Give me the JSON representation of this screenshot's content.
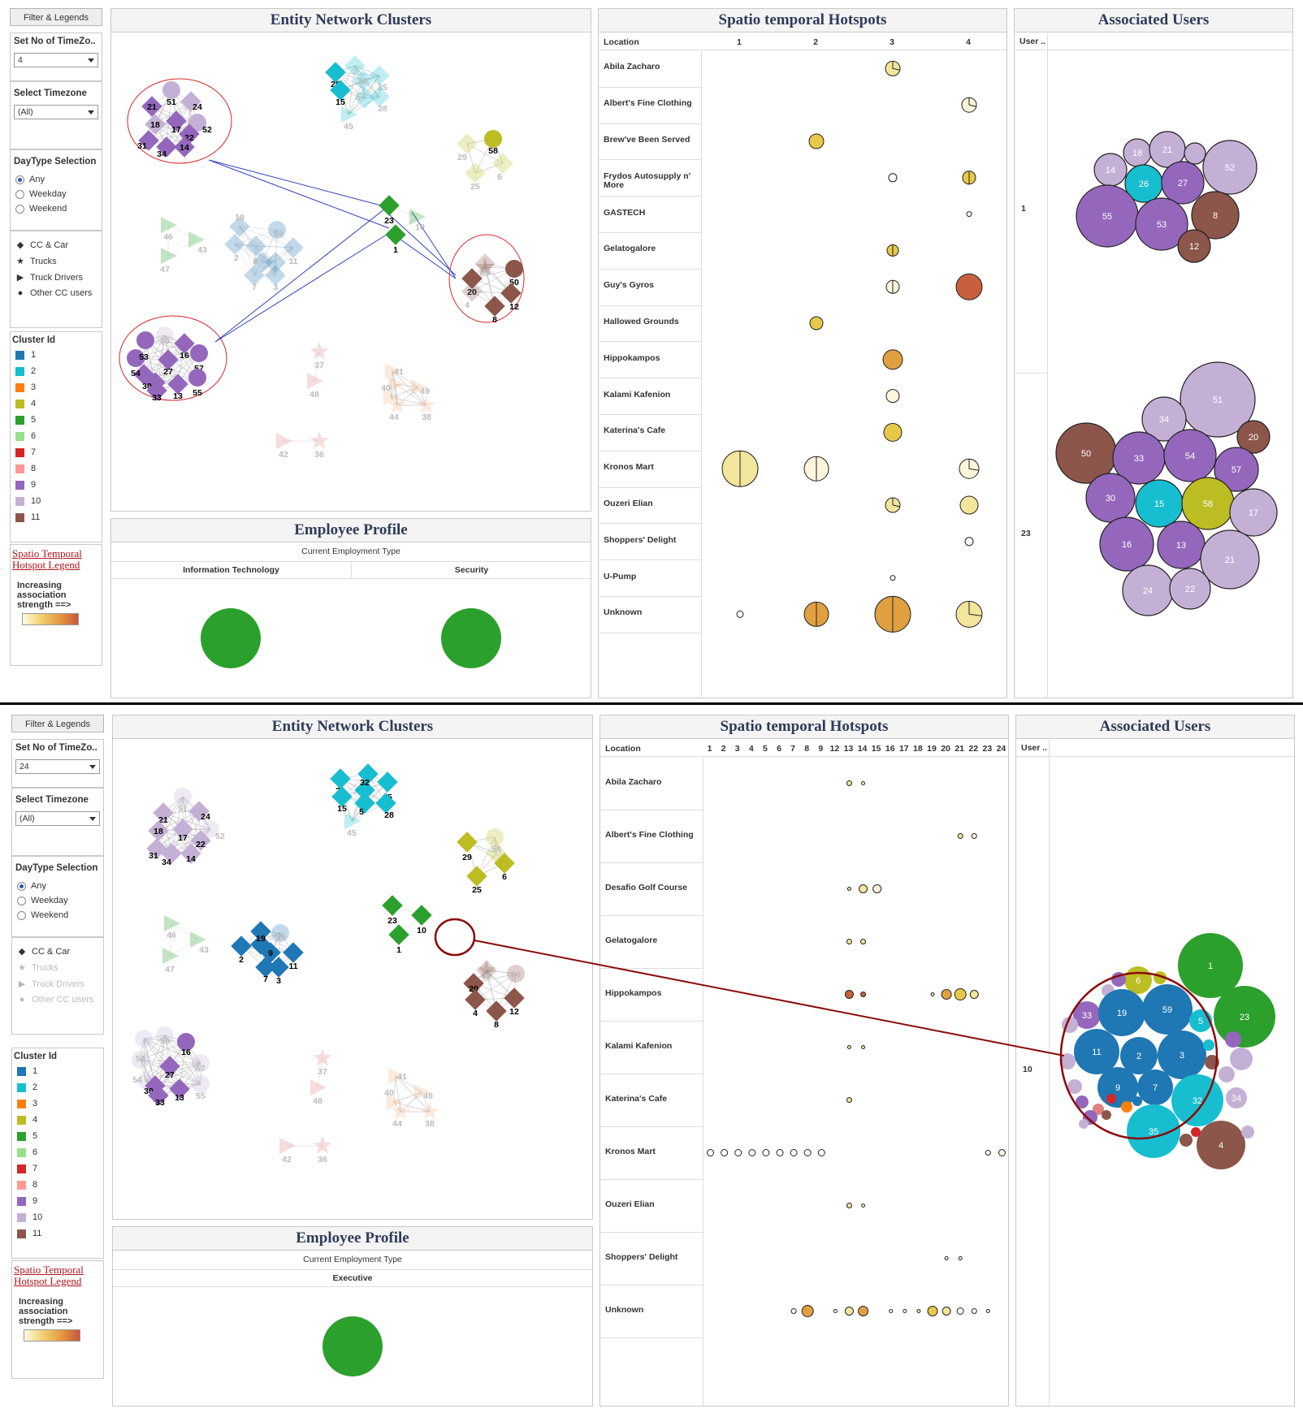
{
  "top": {
    "filters": {
      "header": "Filter & Legends",
      "timezones_label": "Set No of TimeZo..",
      "timezones_value": "4",
      "timezone_label": "Select Timezone",
      "timezone_value": "(All)",
      "daytype_label": "DayType Selection",
      "daytype_options": [
        "Any",
        "Weekday",
        "Weekend"
      ],
      "daytype_selected": "Any"
    },
    "network_title": "Entity Network Clusters",
    "hotspot_title": "Spatio temporal Hotspots",
    "users_title": "Associated Users",
    "profile_title": "Employee Profile",
    "profile_header": "Current Employment Type",
    "profile_types": [
      "Information Technology",
      "Security"
    ],
    "location_header": "Location",
    "time_columns": [
      "1",
      "2",
      "3",
      "4"
    ],
    "locations": [
      "Abila Zacharo",
      "Albert's Fine Clothing",
      "Brew've Been Served",
      "Frydos Autosupply n' More",
      "GASTECH",
      "Gelatogalore",
      "Guy's Gyros",
      "Hallowed Grounds",
      "Hippokampos",
      "Kalami Kafenion",
      "Katerina's Cafe",
      "Kronos Mart",
      "Ouzeri Elian",
      "Shoppers' Delight",
      "U-Pump",
      "Unknown"
    ],
    "user_header": "User ..",
    "user_groups": [
      "1",
      "23"
    ],
    "users_group1": [
      "14",
      "18",
      "21",
      "52",
      "26",
      "27",
      "55",
      "53",
      "8",
      "12"
    ],
    "users_group2": [
      "51",
      "34",
      "20",
      "50",
      "33",
      "54",
      "57",
      "30",
      "15",
      "58",
      "17",
      "16",
      "13",
      "21",
      "24",
      "22"
    ]
  },
  "bottom": {
    "filters": {
      "header": "Filter & Legends",
      "timezones_label": "Set No of TimeZo..",
      "timezones_value": "24",
      "timezone_label": "Select Timezone",
      "timezone_value": "(All)",
      "daytype_label": "DayType Selection",
      "daytype_options": [
        "Any",
        "Weekday",
        "Weekend"
      ],
      "daytype_selected": "Any"
    },
    "network_title": "Entity Network Clusters",
    "hotspot_title": "Spatio temporal Hotspots",
    "users_title": "Associated Users",
    "profile_title": "Employee Profile",
    "profile_header": "Current Employment Type",
    "profile_types": [
      "Executive"
    ],
    "location_header": "Location",
    "time_columns": [
      "1",
      "2",
      "3",
      "4",
      "5",
      "6",
      "7",
      "8",
      "9",
      "12",
      "13",
      "14",
      "15",
      "16",
      "17",
      "18",
      "19",
      "20",
      "21",
      "22",
      "23",
      "24"
    ],
    "locations": [
      "Abila Zacharo",
      "Albert's Fine Clothing",
      "Desafio Golf Course",
      "Gelatogalore",
      "Hippokampos",
      "Kalami Kafenion",
      "Katerina's Cafe",
      "Kronos Mart",
      "Ouzeri Elian",
      "Shoppers' Delight",
      "Unknown"
    ],
    "user_header": "User ..",
    "user_groups": [
      "10"
    ],
    "users": [
      "1",
      "23",
      "6",
      "33",
      "19",
      "59",
      "5",
      "11",
      "2",
      "3",
      "9",
      "7",
      "32",
      "34",
      "35",
      "4"
    ]
  },
  "legend": {
    "shapes": [
      {
        "icon": "diamond-icon",
        "label": "CC & Car"
      },
      {
        "icon": "star-icon",
        "label": "Trucks"
      },
      {
        "icon": "triangle-icon",
        "label": "Truck Drivers"
      },
      {
        "icon": "circle-icon",
        "label": "Other CC users"
      }
    ],
    "cluster_label": "Cluster Id",
    "clusters": [
      {
        "id": "1",
        "color": "#1f77b4"
      },
      {
        "id": "2",
        "color": "#17becf"
      },
      {
        "id": "3",
        "color": "#ff7f0e"
      },
      {
        "id": "4",
        "color": "#bcbd22"
      },
      {
        "id": "5",
        "color": "#2ca02c"
      },
      {
        "id": "6",
        "color": "#98df8a"
      },
      {
        "id": "7",
        "color": "#d62728"
      },
      {
        "id": "8",
        "color": "#ff9896"
      },
      {
        "id": "9",
        "color": "#9467bd"
      },
      {
        "id": "10",
        "color": "#c5b0d5"
      },
      {
        "id": "11",
        "color": "#8c564b"
      }
    ],
    "hotspot_legend_title": "Spatio Temporal Hotspot Legend",
    "hotspot_legend_text": "Increasing association strength ==>"
  }
}
